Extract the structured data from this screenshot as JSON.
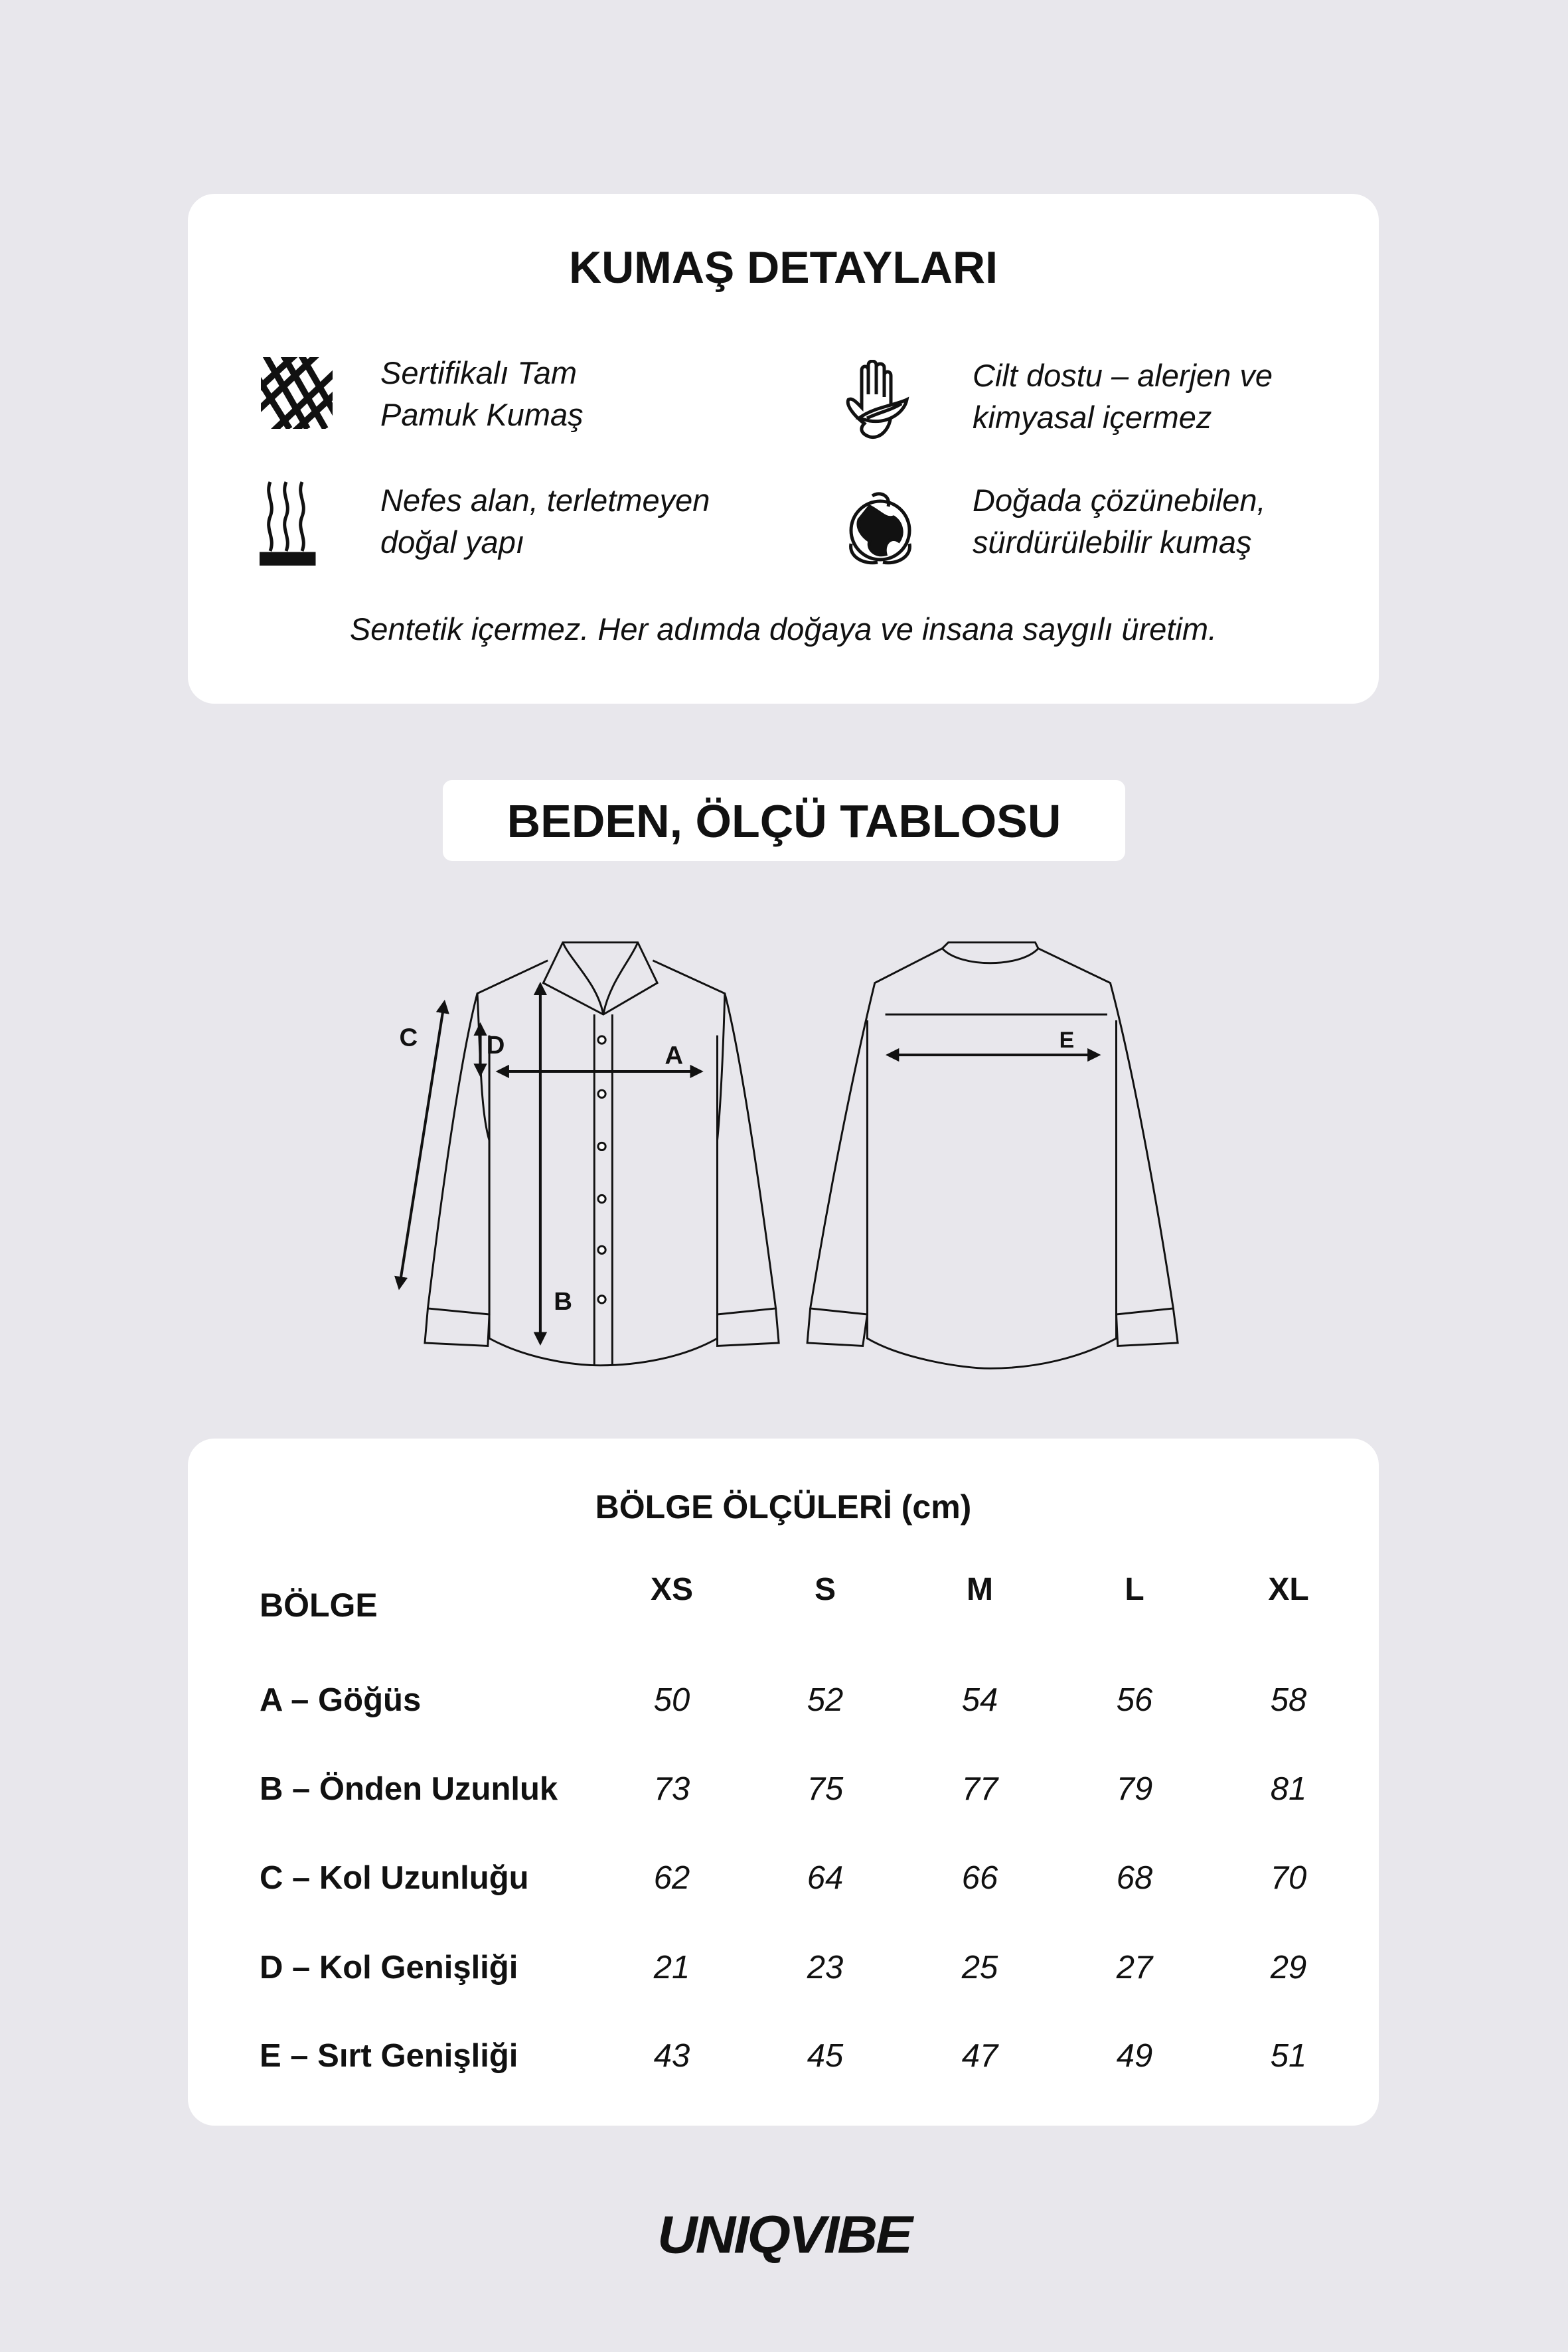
{
  "fabric": {
    "title": "KUMAŞ DETAYLARI",
    "features": [
      {
        "icon": "yarn-ball-icon",
        "line1": "Sertifikalı Tam",
        "line2": "Pamuk Kumaş"
      },
      {
        "icon": "hand-leaf-icon",
        "line1": "Cilt dostu – alerjen ve",
        "line2": "kimyasal içermez"
      },
      {
        "icon": "steam-fabric-icon",
        "line1": "Nefes alan, terletmeyen",
        "line2": "doğal yapı"
      },
      {
        "icon": "globe-hands-icon",
        "line1": "Doğada çözünebilen,",
        "line2": "sürdürülebilir kumaş"
      }
    ],
    "note": "Sentetik içermez. Her adımda doğaya ve insana saygılı üretim."
  },
  "size_chart_title": "BEDEN, ÖLÇÜ TABLOSU",
  "diagram_labels": {
    "a": "A",
    "b": "B",
    "c": "C",
    "d": "D",
    "e": "E"
  },
  "table": {
    "title": "BÖLGE ÖLÇÜLERİ (cm)",
    "row_header": "BÖLGE",
    "sizes": [
      "XS",
      "S",
      "M",
      "L",
      "XL"
    ],
    "rows": [
      {
        "label": "A – Göğüs",
        "values": [
          "50",
          "52",
          "54",
          "56",
          "58"
        ]
      },
      {
        "label": "B – Önden Uzunluk",
        "values": [
          "73",
          "75",
          "77",
          "79",
          "81"
        ]
      },
      {
        "label": "C – Kol Uzunluğu",
        "values": [
          "62",
          "64",
          "66",
          "68",
          "70"
        ]
      },
      {
        "label": "D – Kol Genişliği",
        "values": [
          "21",
          "23",
          "25",
          "27",
          "29"
        ]
      },
      {
        "label": "E – Sırt Genişliği",
        "values": [
          "43",
          "45",
          "47",
          "49",
          "51"
        ]
      }
    ]
  },
  "brand": {
    "logo": "UNIQVIBE"
  },
  "colors": {
    "background": "#e8e7ec",
    "card": "#ffffff",
    "ink": "#111111"
  }
}
